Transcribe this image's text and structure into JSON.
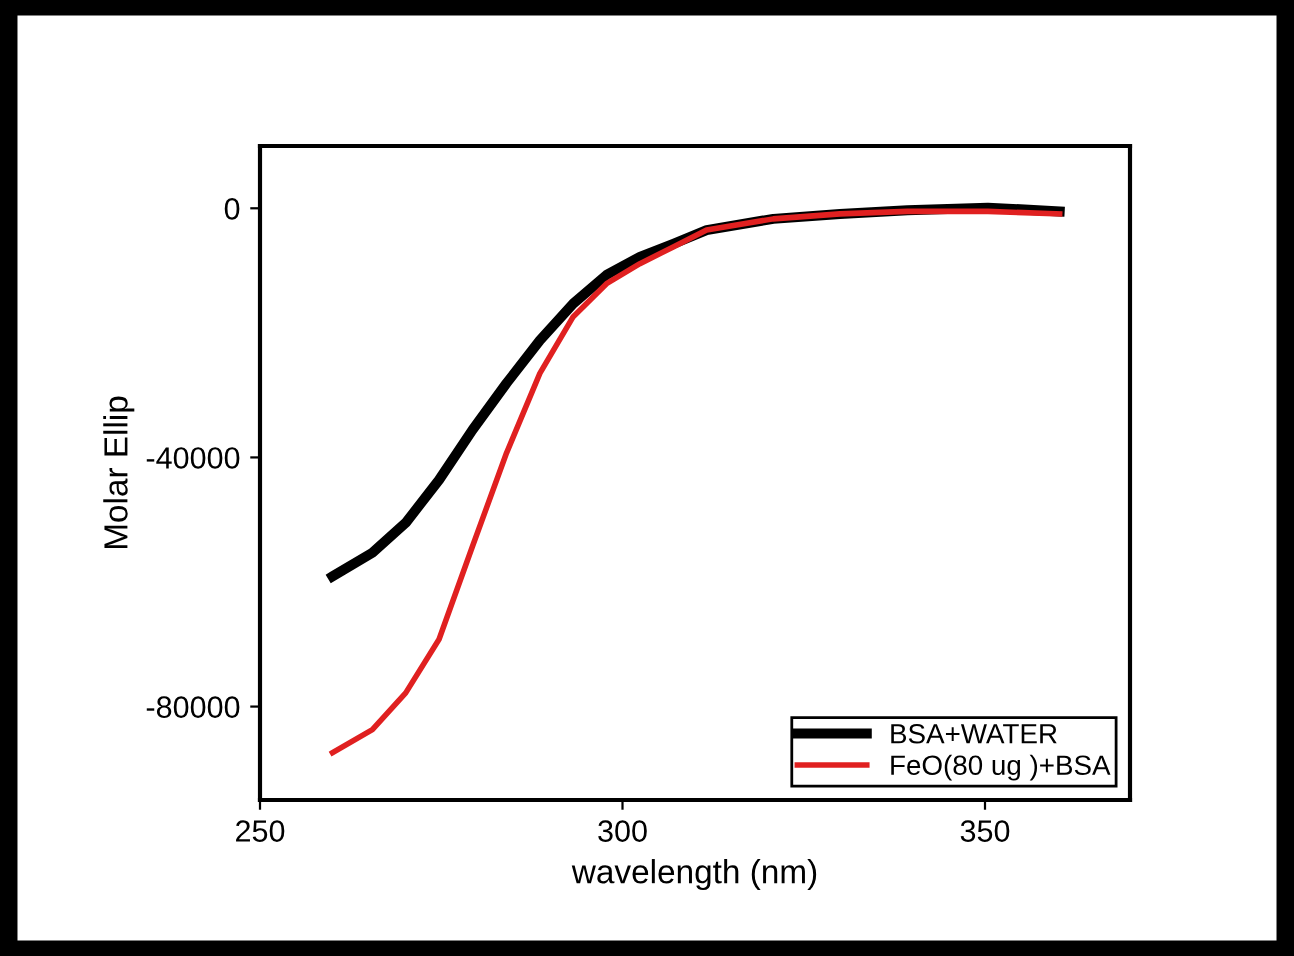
{
  "chart_data": {
    "type": "line",
    "xlabel": "wavelength (nm)",
    "ylabel": "Molar Ellip",
    "xlim": [
      250,
      370
    ],
    "xticks": [
      250,
      300,
      350
    ],
    "ylim": [
      -95000,
      10000
    ],
    "yticks": [
      -80000,
      -40000,
      0
    ],
    "grid": false,
    "legend": "bottom right",
    "marker": "none",
    "line_style": "solid",
    "series": [
      {
        "name": "BSA+WATER",
        "color": "#000000",
        "x": [
          260,
          265.5,
          270.1,
          274.7,
          279.3,
          284,
          288.6,
          293.2,
          297.8,
          302.4,
          307,
          311.6,
          320.8,
          330,
          339.3,
          350.4,
          360.3
        ],
        "values": [
          -59100,
          -55300,
          -50500,
          -43600,
          -35600,
          -28100,
          -21200,
          -15300,
          -10700,
          -7800,
          -5700,
          -3500,
          -1700,
          -900,
          -300,
          100,
          -500
        ]
      },
      {
        "name": "FeO(80 ug )+BSA",
        "color": "#e02020",
        "x": [
          260,
          265.5,
          270.1,
          274.7,
          279.3,
          284,
          288.6,
          293.2,
          297.8,
          302.4,
          307,
          311.6,
          320.8,
          330,
          339.3,
          350.4,
          360.3
        ],
        "values": [
          -87400,
          -83700,
          -77800,
          -69200,
          -54300,
          -39300,
          -26500,
          -17400,
          -12100,
          -8900,
          -6200,
          -3500,
          -1700,
          -900,
          -500,
          -500,
          -900
        ]
      }
    ]
  }
}
